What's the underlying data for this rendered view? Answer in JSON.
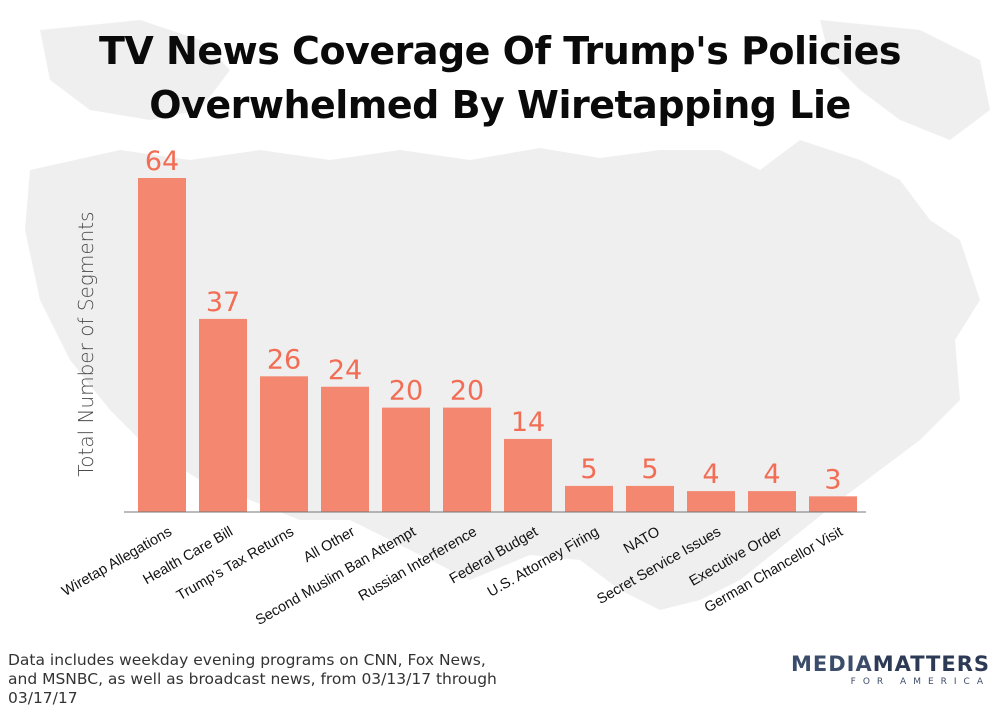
{
  "title_lines": [
    "TV News Coverage Of Trump's Policies",
    "Overwhelmed By Wiretapping Lie"
  ],
  "footnote_lines": [
    "Data includes weekday evening programs on CNN, Fox News,",
    "and MSNBC, as well as broadcast news, from 03/13/17 through 03/17/17"
  ],
  "logo": {
    "word1": "MEDIA",
    "word2": "MATTERS",
    "sub": "FOR AMERICA"
  },
  "colors": {
    "bar": "#f4876f",
    "value_label": "#f26d55",
    "axis": "#777777",
    "map": "#efefef"
  },
  "chart_data": {
    "type": "bar",
    "title": "TV News Coverage Of Trump's Policies Overwhelmed By Wiretapping Lie",
    "xlabel": "",
    "ylabel": "Total Number of Segments",
    "categories": [
      "Wiretap Allegations",
      "Health Care Bill",
      "Trump's Tax Returns",
      "All Other",
      "Second Muslim Ban Attempt",
      "Russian Interference",
      "Federal Budget",
      "U.S. Attorney Firing",
      "NATO",
      "Secret Service Issues",
      "Executive Order",
      "German Chancellor Visit"
    ],
    "values": [
      64,
      37,
      26,
      24,
      20,
      20,
      14,
      5,
      5,
      4,
      4,
      3
    ],
    "ylim": [
      0,
      64
    ],
    "grid": false,
    "legend": "none",
    "data_labels": true
  }
}
